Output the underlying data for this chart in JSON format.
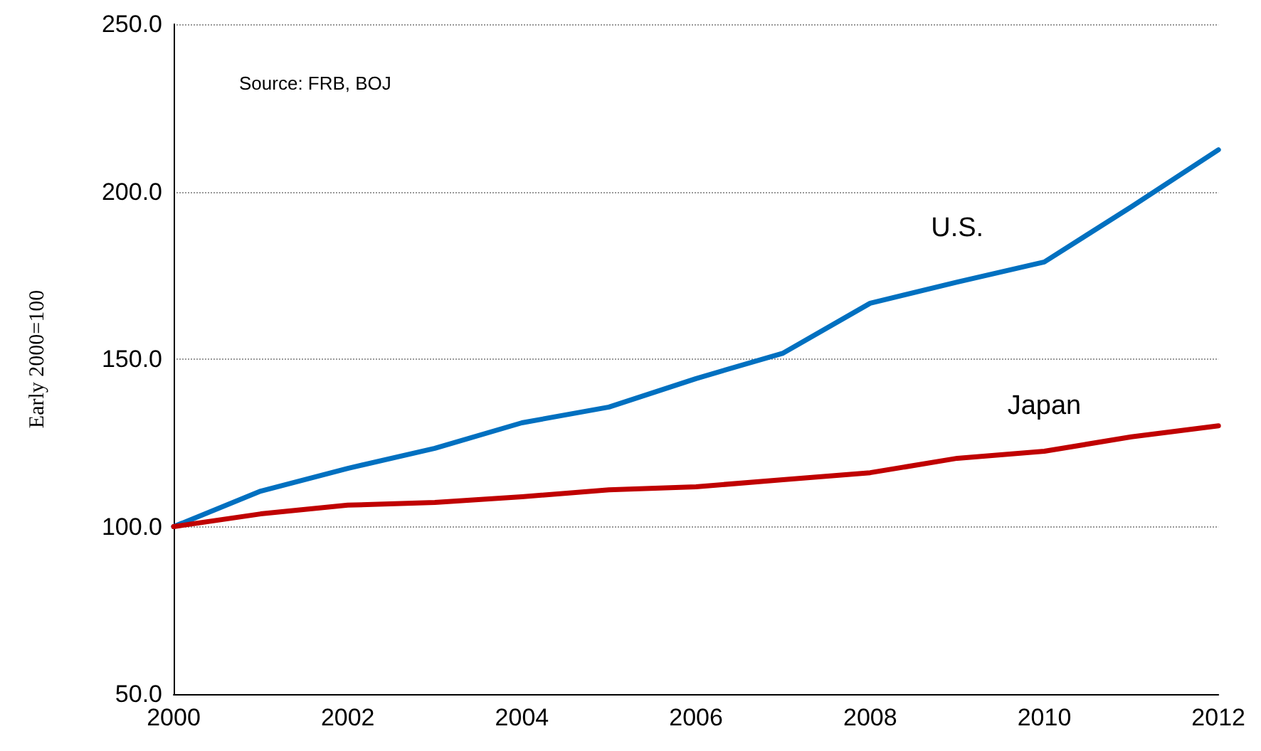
{
  "chart_data": {
    "type": "line",
    "ylabel": "Early 2000=100",
    "annotations": [
      "Source: FRB, BOJ"
    ],
    "x": [
      2000,
      2001,
      2002,
      2003,
      2004,
      2005,
      2006,
      2007,
      2008,
      2009,
      2010,
      2011,
      2012
    ],
    "series": [
      {
        "name": "U.S.",
        "color": "#0070c0",
        "values": [
          100,
          110.6,
          117.4,
          123.4,
          131,
          135.7,
          144.2,
          151.8,
          166.7,
          173,
          179,
          195.5,
          212.5
        ]
      },
      {
        "name": "Japan",
        "color": "#c00000",
        "values": [
          100,
          103.8,
          106.4,
          107.2,
          108.9,
          111,
          111.9,
          114,
          116.1,
          120.4,
          122.5,
          126.8,
          130.1
        ]
      }
    ],
    "xlim": [
      2000,
      2012
    ],
    "xticks": [
      2000,
      2002,
      2004,
      2006,
      2008,
      2010,
      2012
    ],
    "ylim": [
      50,
      250
    ],
    "yticks": [
      {
        "value": 50,
        "label": "50.0"
      },
      {
        "value": 100,
        "label": "100.0"
      },
      {
        "value": 150,
        "label": "150.0"
      },
      {
        "value": 200,
        "label": "200.0"
      },
      {
        "value": 250,
        "label": "250.0"
      }
    ],
    "grid": "y",
    "marker": "none",
    "line_style": "solid"
  }
}
